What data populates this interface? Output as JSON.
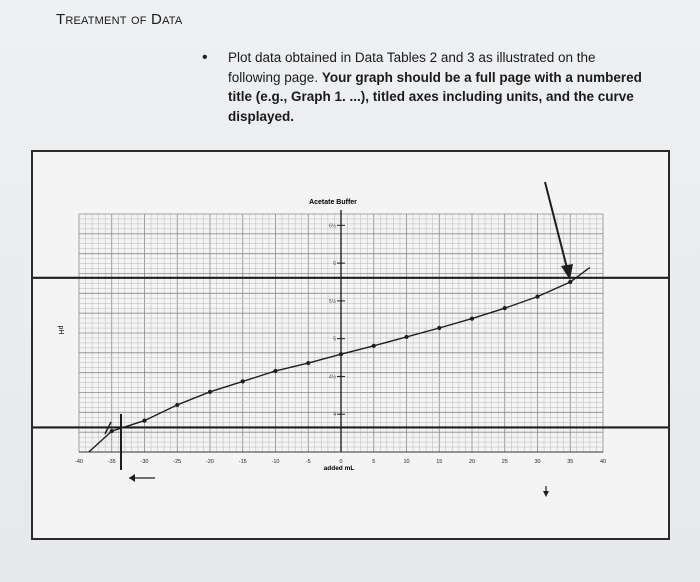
{
  "heading": "Treatment of Data",
  "instructions": {
    "line1": "Plot data obtained in Data Tables 2 and 3 as illustrated on the",
    "line2": "following page.",
    "line2_bold": "Your graph should be a full page with a numbered",
    "line3_bold": "title (e.g., Graph 1. ...), titled axes including units, and the curve",
    "line4_bold": "displayed."
  },
  "chart_data": {
    "type": "line",
    "title": "Acetate Buffer",
    "xlabel": "added mL",
    "ylabel": "pH",
    "xlim": [
      -40,
      40
    ],
    "x_ticks": [
      -40,
      -35,
      -30,
      -25,
      -20,
      -15,
      -10,
      -5,
      0,
      5,
      10,
      15,
      20,
      25,
      30,
      35,
      40
    ],
    "y_ticks": [
      "4",
      "4½",
      "5",
      "5½",
      "6",
      "6½"
    ],
    "grid": true,
    "series": [
      {
        "x": [
          -35,
          -30,
          -25,
          -20,
          -15,
          -10,
          -5,
          0,
          5,
          10,
          15,
          20,
          25,
          30,
          35,
          38
        ],
        "y": [
          2.15,
          2.35,
          2.65,
          2.9,
          3.1,
          3.3,
          3.45,
          3.62,
          3.78,
          3.95,
          4.12,
          4.3,
          4.5,
          4.72,
          5.0,
          5.28
        ]
      }
    ],
    "reference_lines_y": [
      5.08,
      2.22
    ],
    "tick_label_x": "-35",
    "annotation_marks": [
      "arrow-left",
      "arrow-down"
    ]
  }
}
